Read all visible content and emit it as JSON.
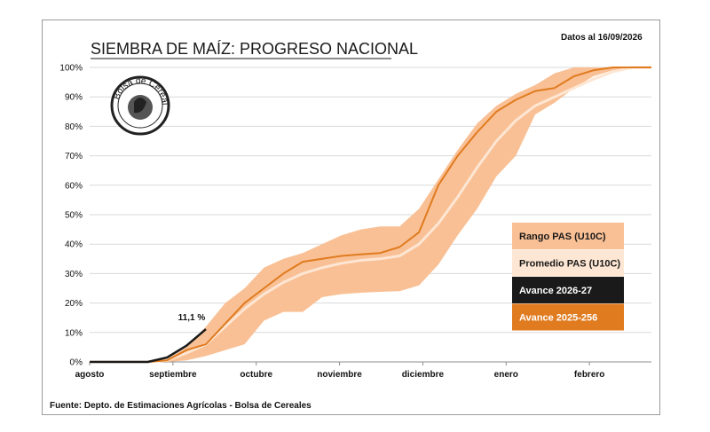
{
  "header": {
    "date_note": "Datos al 16/09/2026"
  },
  "footer": {
    "source": "Fuente: Depto. de Estimaciones Agrícolas - Bolsa de Cereales"
  },
  "logo": {
    "text": "Bolsa de Cereales"
  },
  "colors": {
    "range": "#f9c095",
    "average": "#fde6d3",
    "current": "#1a1a1a",
    "previous": "#e07b1f",
    "grid": "#d9d9d9"
  },
  "chart_data": {
    "type": "line",
    "title": "SIEMBRA DE MAÍZ: PROGRESO NACIONAL",
    "ylim": [
      0,
      100
    ],
    "xlim": [
      0,
      29
    ],
    "y_ticks": [
      "0%",
      "10%",
      "20%",
      "30%",
      "40%",
      "50%",
      "60%",
      "70%",
      "80%",
      "90%",
      "100%"
    ],
    "x_ticks": [
      {
        "label": "agosto",
        "x": 0
      },
      {
        "label": "septiembre",
        "x": 4.3
      },
      {
        "label": "octubre",
        "x": 8.6
      },
      {
        "label": "noviembre",
        "x": 12.9
      },
      {
        "label": "diciembre",
        "x": 17.2
      },
      {
        "label": "enero",
        "x": 21.5
      },
      {
        "label": "febrero",
        "x": 25.8
      }
    ],
    "annotation": {
      "text": "11,1 %",
      "x": 6,
      "y": 11.1
    },
    "legend": [
      "Rango PAS (U10C)",
      "Promedio PAS (U10C)",
      "Avance 2026-27",
      "Avance 2025-256"
    ],
    "range": {
      "name": "Rango PAS (U10C)",
      "x": [
        0,
        1,
        2,
        3,
        4,
        5,
        6,
        7,
        8,
        9,
        10,
        11,
        12,
        13,
        14,
        15,
        16,
        17,
        18,
        19,
        20,
        21,
        22,
        23,
        24,
        25,
        26,
        27,
        28,
        29
      ],
      "low": [
        0,
        0,
        0,
        0,
        0,
        0.5,
        2,
        4,
        6,
        14,
        17,
        17,
        22,
        23,
        23.5,
        23.8,
        24,
        26,
        33,
        43,
        52,
        63,
        70,
        84,
        88,
        93,
        97,
        99,
        100,
        100
      ],
      "high": [
        0,
        0,
        0,
        0,
        1,
        5,
        12,
        20,
        25,
        32,
        35,
        37,
        40,
        43,
        45,
        46,
        46,
        52,
        62,
        72,
        81,
        87,
        91,
        94,
        98,
        100,
        100,
        100,
        100,
        100
      ]
    },
    "series": [
      {
        "name": "Promedio PAS (U10C)",
        "x": [
          0,
          1,
          2,
          3,
          4,
          5,
          6,
          7,
          8,
          9,
          10,
          11,
          12,
          13,
          14,
          15,
          16,
          17,
          18,
          19,
          20,
          21,
          22,
          23,
          24,
          25,
          26,
          27,
          28,
          29
        ],
        "values": [
          0,
          0,
          0,
          0,
          0.5,
          3,
          6,
          12,
          18,
          23,
          27,
          30,
          32,
          33.5,
          34.5,
          35,
          36,
          40,
          47,
          56,
          66,
          75,
          82,
          87,
          90,
          93,
          96,
          98.5,
          100,
          100
        ]
      },
      {
        "name": "Avance 2026-27",
        "x": [
          0,
          1,
          2,
          3,
          4,
          5,
          6
        ],
        "values": [
          0,
          0,
          0,
          0,
          1.5,
          5.5,
          11.1
        ]
      },
      {
        "name": "Avance 2025-256",
        "x": [
          0,
          1,
          2,
          3,
          4,
          5,
          6,
          7,
          8,
          9,
          10,
          11,
          12,
          13,
          14,
          15,
          16,
          17,
          18,
          19,
          20,
          21,
          22,
          23,
          24,
          25,
          26,
          27,
          28,
          29
        ],
        "values": [
          0,
          0,
          0,
          0,
          0.5,
          4,
          6,
          13,
          20,
          25,
          30,
          34,
          35,
          36,
          36.5,
          37,
          39,
          44,
          60,
          70,
          78,
          85,
          89,
          92,
          93,
          97,
          99,
          100,
          100,
          100
        ]
      }
    ]
  }
}
